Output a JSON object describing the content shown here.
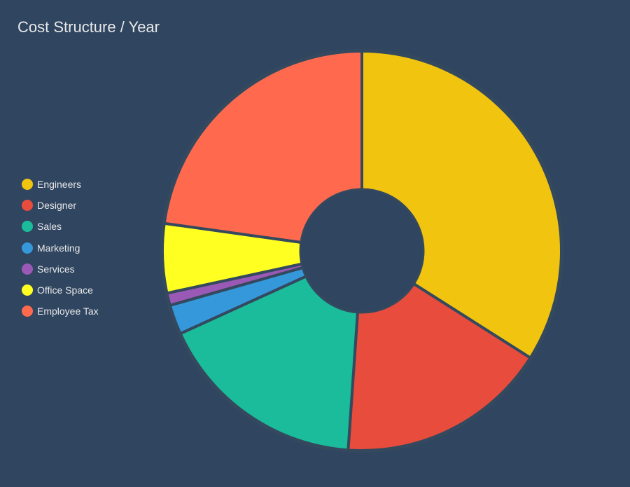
{
  "title": "Cost Structure / Year",
  "background": "#2f4560",
  "chart_data": {
    "type": "pie",
    "variant": "donut",
    "title": "Cost Structure / Year",
    "legend_position": "left",
    "categories": [
      "Engineers",
      "Designer",
      "Sales",
      "Marketing",
      "Services",
      "Office Space",
      "Employee Tax"
    ],
    "values": [
      34.0,
      17.1,
      17.1,
      2.4,
      1.0,
      5.6,
      22.8
    ],
    "colors": [
      "#f1c40f",
      "#e74c3c",
      "#1abc9c",
      "#3498db",
      "#9b59b6",
      "#ffff22",
      "#ff6a4f"
    ]
  },
  "legend": [
    {
      "label": "Engineers",
      "color": "#f1c40f"
    },
    {
      "label": "Designer",
      "color": "#e74c3c"
    },
    {
      "label": "Sales",
      "color": "#1abc9c"
    },
    {
      "label": "Marketing",
      "color": "#3498db"
    },
    {
      "label": "Services",
      "color": "#9b59b6"
    },
    {
      "label": "Office Space",
      "color": "#ffff22"
    },
    {
      "label": "Employee Tax",
      "color": "#ff6a4f"
    }
  ]
}
